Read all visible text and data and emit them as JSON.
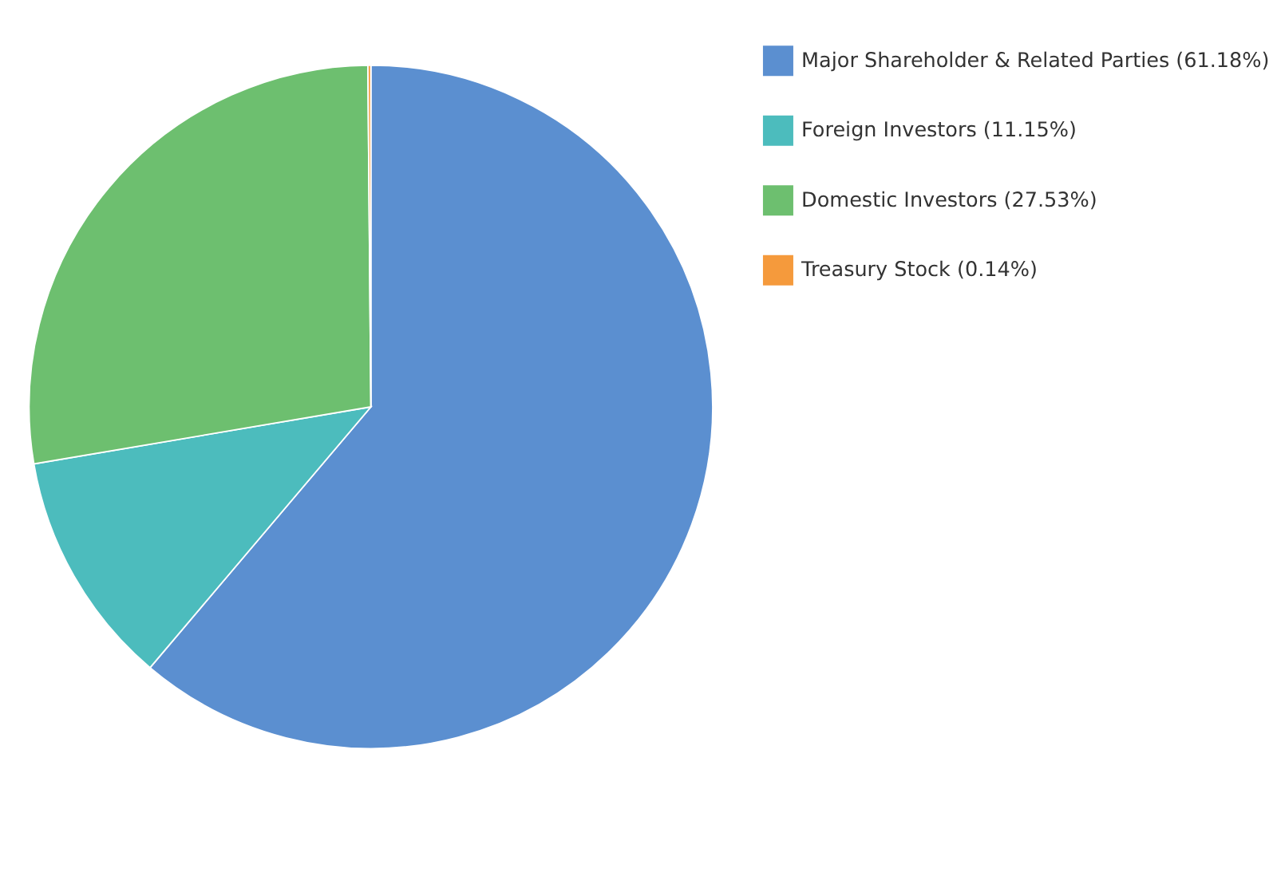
{
  "chart_data": {
    "type": "pie",
    "categories": [
      "Major Shareholder & Related Parties (61.18%)",
      "Foreign Investors (11.15%)",
      "Domestic Investors (27.53%)",
      "Treasury Stock (0.14%)"
    ],
    "values": [
      61.18,
      11.15,
      27.53,
      0.14
    ],
    "colors": [
      "#5b8fd0",
      "#4cbcbd",
      "#6dbf6f",
      "#f59a3c"
    ],
    "legend": "right"
  }
}
